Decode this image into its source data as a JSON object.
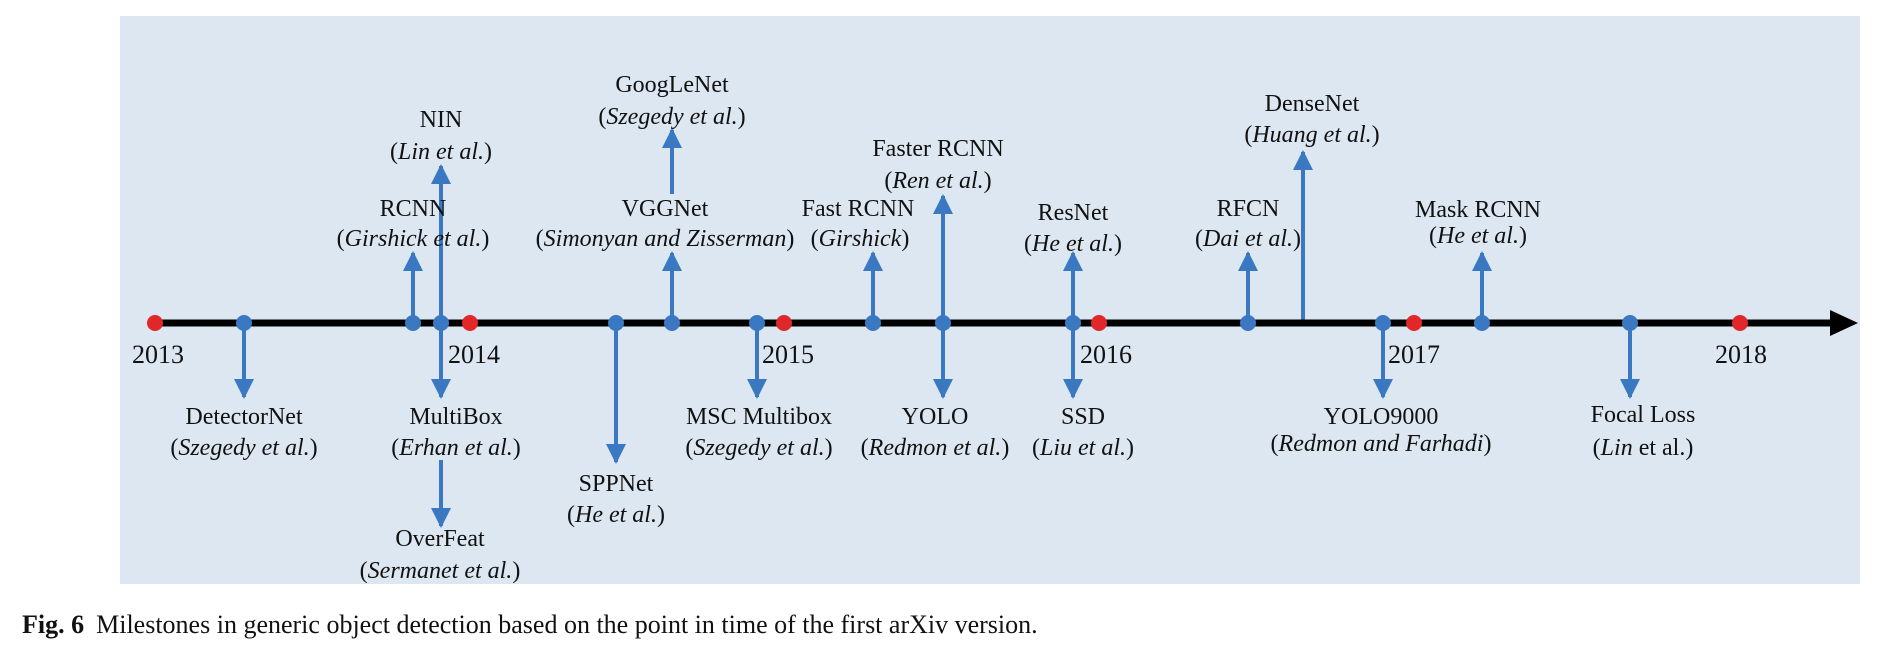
{
  "colors": {
    "panel_background": "#dde7f1",
    "axis": "#000000",
    "year_dot": "#e0282a",
    "milestone": "#3a78c2"
  },
  "axis": {
    "start_year": "2013",
    "end_year": "2018",
    "years": [
      "2013",
      "2014",
      "2015",
      "2016",
      "2017",
      "2018"
    ],
    "arrowhead": "right"
  },
  "milestones": [
    {
      "id": "detectornet",
      "name": "DetectorNet",
      "author_pre": "(",
      "author_it": "Szegedy et al.",
      "author_post": ")",
      "side": "below",
      "time": 2013.3
    },
    {
      "id": "rcnn",
      "name": "RCNN",
      "author_pre": "(",
      "author_it": "Girshick et al.",
      "author_post": ")",
      "side": "above",
      "time": 2013.85
    },
    {
      "id": "nin",
      "name": "NIN",
      "author_pre": "(",
      "author_it": "Lin et al.",
      "author_post": ")",
      "side": "above",
      "time": 2013.95
    },
    {
      "id": "multibox",
      "name": "MultiBox",
      "author_pre": "(",
      "author_it": "Erhan et al.",
      "author_post": ")",
      "side": "below",
      "time": 2013.95
    },
    {
      "id": "overfeat",
      "name": "OverFeat",
      "author_pre": "(",
      "author_it": "Sermanet et al.",
      "author_post": ")",
      "side": "below",
      "time": 2013.95
    },
    {
      "id": "sppnet",
      "name": "SPPNet",
      "author_pre": "(",
      "author_it": "He et al.",
      "author_post": ")",
      "side": "below",
      "time": 2014.5
    },
    {
      "id": "googlenet",
      "name": "GoogLeNet",
      "author_pre": "(",
      "author_it": "Szegedy et al.",
      "author_post": ")",
      "side": "above",
      "time": 2014.7
    },
    {
      "id": "vggnet",
      "name": "VGGNet",
      "author_pre": "(",
      "author_it": "Simonyan and Zisserman",
      "author_post": ")",
      "side": "above",
      "time": 2014.7
    },
    {
      "id": "msc-multibox",
      "name": "MSC Multibox",
      "author_pre": "(",
      "author_it": "Szegedy et al.",
      "author_post": ")",
      "side": "below",
      "time": 2014.9
    },
    {
      "id": "fast-rcnn",
      "name": "Fast RCNN",
      "author_pre": "(",
      "author_it": "Girshick",
      "author_post": ")",
      "side": "above",
      "time": 2015.25
    },
    {
      "id": "faster-rcnn",
      "name": "Faster RCNN",
      "author_pre": "(",
      "author_it": "Ren et al.",
      "author_post": ")",
      "side": "above",
      "time": 2015.45
    },
    {
      "id": "yolo",
      "name": "YOLO",
      "author_pre": "(",
      "author_it": "Redmon et al.",
      "author_post": ")",
      "side": "below",
      "time": 2015.45
    },
    {
      "id": "resnet",
      "name": "ResNet",
      "author_pre": "(",
      "author_it": "He et al.",
      "author_post": ")",
      "side": "above",
      "time": 2015.9
    },
    {
      "id": "ssd",
      "name": "SSD",
      "author_pre": "(",
      "author_it": "Liu et al.",
      "author_post": ")",
      "side": "below",
      "time": 2015.9
    },
    {
      "id": "rfcn",
      "name": "RFCN",
      "author_pre": "(",
      "author_it": "Dai et al.",
      "author_post": ")",
      "side": "above",
      "time": 2016.45
    },
    {
      "id": "densenet",
      "name": "DenseNet",
      "author_pre": "(",
      "author_it": "Huang et al.",
      "author_post": ")",
      "side": "above",
      "time": 2016.6
    },
    {
      "id": "yolo9000",
      "name": "YOLO9000",
      "author_pre": "(",
      "author_it": "Redmon and Farhadi",
      "author_post": ")",
      "side": "below",
      "time": 2016.9
    },
    {
      "id": "mask-rcnn",
      "name": "Mask RCNN",
      "author_pre": "(",
      "author_it": "He et al.",
      "author_post": ")",
      "side": "above",
      "time": 2017.2
    },
    {
      "id": "focal-loss",
      "name": "Focal Loss",
      "author_pre": "(",
      "author_it": "Lin ",
      "author_up": "et al.",
      "author_post": ")",
      "side": "below",
      "time": 2017.6
    }
  ],
  "caption": {
    "label": "Fig. 6",
    "text": "Milestones in generic object detection based on the point in time of the first arXiv version."
  }
}
